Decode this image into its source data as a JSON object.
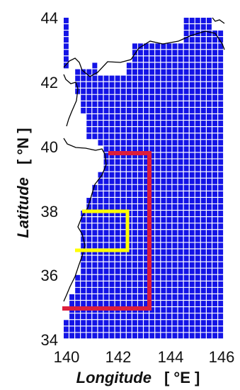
{
  "chart_data": {
    "type": "map",
    "xlabel": "Longitude",
    "xunit": "[ °E ]",
    "ylabel": "Latitude",
    "yunit": "[ °N ]",
    "xlim": [
      140,
      146
    ],
    "ylim": [
      34,
      44
    ],
    "xticks": [
      "140",
      "142",
      "144",
      "146"
    ],
    "yticks": [
      "34",
      "36",
      "38",
      "40",
      "42",
      "44"
    ],
    "grid_cell_color": "#1414e6",
    "coastline_color": "#000000",
    "regions": [
      {
        "color": "#dc1e3c",
        "lon_range": [
          140,
          143.4
        ],
        "lat_range": [
          35.0,
          39.8
        ],
        "shape": "open-rectangle"
      },
      {
        "color": "#ffff00",
        "lon_range": [
          140.9,
          142.5
        ],
        "lat_range": [
          36.8,
          38.0
        ],
        "shape": "open-rectangle"
      }
    ]
  }
}
